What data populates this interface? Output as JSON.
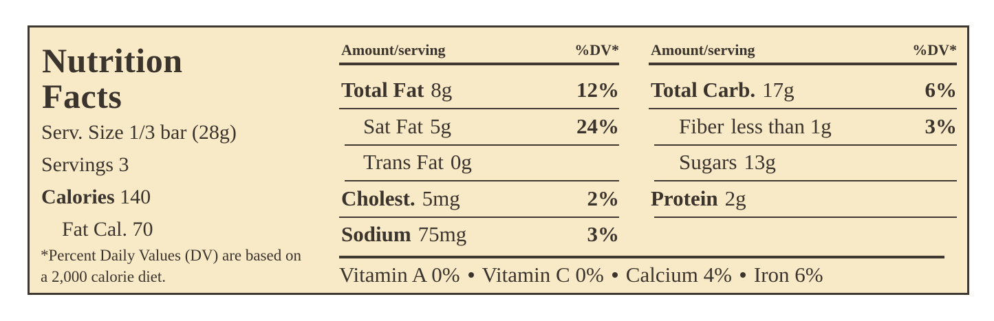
{
  "header": {
    "title": "Nutrition Facts"
  },
  "serving": {
    "size": "Serv. Size 1/3 bar (28g)",
    "servings": "Servings 3",
    "calories_label": "Calories",
    "calories": "140",
    "fat_calories": "Fat Cal. 70",
    "footnote": "*Percent Daily Values (DV) are based on a 2,000 calorie diet."
  },
  "tables": [
    {
      "headers": [
        "Amount/serving",
        "%DV*"
      ],
      "rows": [
        {
          "name": "Total Fat",
          "amount": "8g",
          "dv": "12%"
        },
        {
          "name": "Sat Fat",
          "amount": "5g",
          "dv": "24%"
        },
        {
          "name": "Trans Fat",
          "amount": "0g"
        },
        {
          "name": "Cholest.",
          "amount": "5mg",
          "dv": "2%"
        },
        {
          "name": "Sodium",
          "amount": "75mg",
          "dv": "3%"
        }
      ]
    },
    {
      "headers": [
        "Amount/serving",
        "%DV*"
      ],
      "rows": [
        {
          "name": "Total Carb.",
          "amount": "17g",
          "dv": "6%"
        },
        {
          "name": "Fiber",
          "amount": "less than 1g",
          "dv": "3%"
        },
        {
          "name": "Sugars",
          "amount": "13g"
        },
        {
          "name": "Protein",
          "amount": "2g"
        }
      ]
    }
  ],
  "vitamins": [
    "Vitamin A 0%",
    "Vitamin C 0%",
    "Calcium 4%",
    "Iron 6%"
  ]
}
